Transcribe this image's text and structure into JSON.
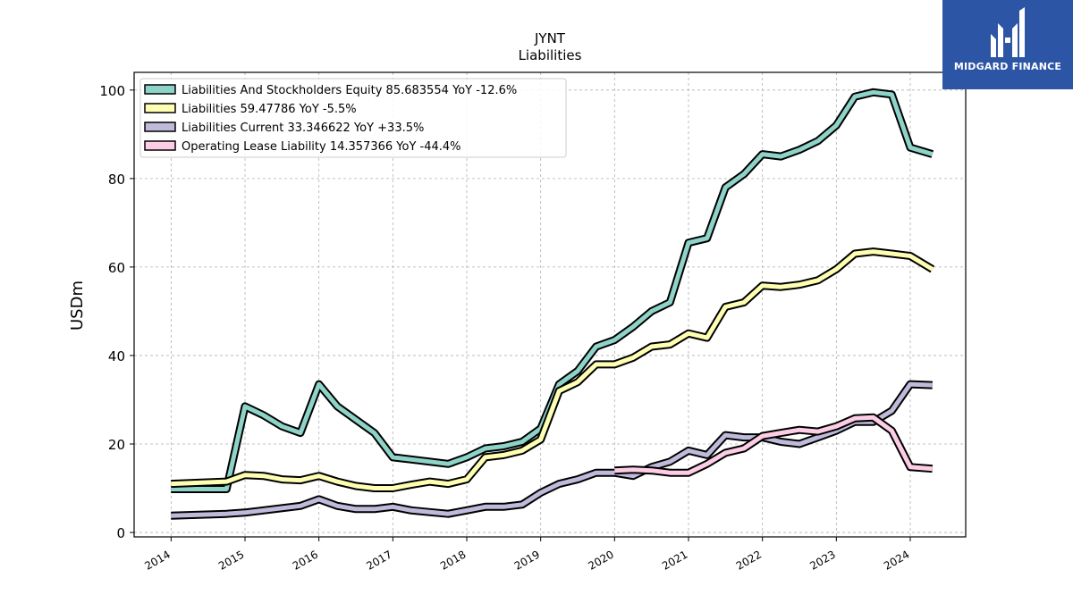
{
  "brand": {
    "name": "MIDGARD FINANCE",
    "bg_color": "#2d55a6"
  },
  "chart_data": {
    "type": "line",
    "title": "JYNT",
    "subtitle": "Liabilities",
    "xlabel": "",
    "ylabel": "USDm",
    "xlim": [
      2013.5,
      2024.75
    ],
    "ylim": [
      -1,
      104
    ],
    "yticks": [
      0,
      20,
      40,
      60,
      80,
      100
    ],
    "xticks": [
      "2014",
      "2015",
      "2016",
      "2017",
      "2018",
      "2019",
      "2020",
      "2021",
      "2022",
      "2023",
      "2024"
    ],
    "grid": true,
    "legend_position": "top-left",
    "series": [
      {
        "name": "Liabilities And Stockholders Equity",
        "legend": "Liabilities And Stockholders Equity  85.683554 YoY -12.6%",
        "color": "#8dd3c7",
        "x": [
          2014.0,
          2014.75,
          2015.0,
          2015.25,
          2015.5,
          2015.75,
          2016.0,
          2016.25,
          2016.5,
          2016.75,
          2017.0,
          2017.25,
          2017.5,
          2017.75,
          2018.0,
          2018.25,
          2018.5,
          2018.75,
          2019.0,
          2019.25,
          2019.5,
          2019.75,
          2020.0,
          2020.25,
          2020.5,
          2020.75,
          2021.0,
          2021.25,
          2021.5,
          2021.75,
          2022.0,
          2022.25,
          2022.5,
          2022.75,
          2023.0,
          2023.25,
          2023.5,
          2023.75,
          2024.0,
          2024.3
        ],
        "y": [
          9.8,
          9.8,
          28.5,
          26.5,
          24.0,
          22.5,
          33.5,
          28.5,
          25.5,
          22.5,
          17.0,
          16.5,
          16.0,
          15.5,
          17.0,
          19.0,
          19.5,
          20.5,
          23.5,
          33.5,
          36.5,
          42.0,
          43.5,
          46.5,
          50.0,
          52.0,
          65.5,
          66.5,
          78.0,
          81.0,
          85.5,
          85.0,
          86.5,
          88.5,
          92.0,
          98.5,
          99.5,
          99.0,
          87.0,
          85.5
        ]
      },
      {
        "name": "Liabilities",
        "legend": "Liabilities  59.47786 YoY -5.5%",
        "color": "#ffffb3",
        "x": [
          2014.0,
          2014.75,
          2015.0,
          2015.25,
          2015.5,
          2015.75,
          2016.0,
          2016.25,
          2016.5,
          2016.75,
          2017.0,
          2017.25,
          2017.5,
          2017.75,
          2018.0,
          2018.25,
          2018.5,
          2018.75,
          2019.0,
          2019.25,
          2019.5,
          2019.75,
          2020.0,
          2020.25,
          2020.5,
          2020.75,
          2021.0,
          2021.25,
          2021.5,
          2021.75,
          2022.0,
          2022.25,
          2022.5,
          2022.75,
          2023.0,
          2023.25,
          2023.5,
          2023.75,
          2024.0,
          2024.3
        ],
        "y": [
          11.0,
          11.5,
          13.0,
          12.8,
          12.0,
          11.8,
          12.8,
          11.5,
          10.5,
          10.0,
          10.0,
          10.8,
          11.5,
          11.0,
          12.0,
          17.0,
          17.5,
          18.5,
          21.0,
          32.0,
          34.0,
          38.0,
          38.0,
          39.5,
          42.0,
          42.5,
          45.0,
          44.0,
          51.0,
          52.0,
          55.8,
          55.5,
          56.0,
          57.0,
          59.5,
          63.0,
          63.5,
          63.0,
          62.5,
          59.5
        ]
      },
      {
        "name": "Liabilities Current",
        "legend": "Liabilities Current  33.346622 YoY +33.5%",
        "color": "#bebada",
        "x": [
          2014.0,
          2014.75,
          2015.0,
          2015.25,
          2015.5,
          2015.75,
          2016.0,
          2016.25,
          2016.5,
          2016.75,
          2017.0,
          2017.25,
          2017.5,
          2017.75,
          2018.0,
          2018.25,
          2018.5,
          2018.75,
          2019.0,
          2019.25,
          2019.5,
          2019.75,
          2020.0,
          2020.25,
          2020.5,
          2020.75,
          2021.0,
          2021.25,
          2021.5,
          2021.75,
          2022.0,
          2022.25,
          2022.5,
          2022.75,
          2023.0,
          2023.25,
          2023.5,
          2023.75,
          2024.0,
          2024.3
        ],
        "y": [
          3.8,
          4.2,
          4.5,
          5.0,
          5.5,
          6.0,
          7.5,
          6.0,
          5.3,
          5.3,
          5.8,
          5.0,
          4.6,
          4.2,
          5.0,
          5.8,
          5.8,
          6.3,
          9.0,
          11.0,
          12.0,
          13.5,
          13.5,
          12.8,
          14.8,
          16.0,
          18.5,
          17.5,
          22.0,
          21.5,
          21.5,
          20.5,
          20.0,
          21.5,
          23.0,
          25.0,
          25.0,
          27.5,
          33.5,
          33.3
        ]
      },
      {
        "name": "Operating Lease Liability",
        "legend": "Operating Lease Liability  14.357366 YoY -44.4%",
        "color": "#fccde5",
        "x": [
          2020.0,
          2020.25,
          2020.5,
          2020.75,
          2021.0,
          2021.25,
          2021.5,
          2021.75,
          2022.0,
          2022.25,
          2022.5,
          2022.75,
          2023.0,
          2023.25,
          2023.5,
          2023.75,
          2024.0,
          2024.3
        ],
        "y": [
          14.0,
          14.2,
          14.0,
          13.5,
          13.5,
          15.5,
          18.0,
          19.0,
          21.8,
          22.5,
          23.2,
          22.8,
          24.0,
          25.8,
          26.0,
          23.0,
          14.8,
          14.4
        ]
      }
    ]
  }
}
